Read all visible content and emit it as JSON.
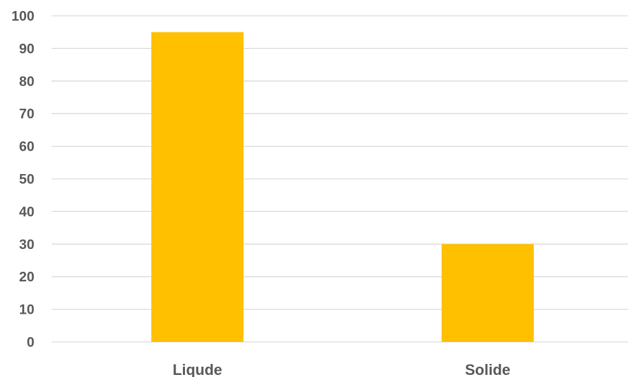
{
  "chart_data": {
    "type": "bar",
    "categories": [
      "Liqude",
      "Solide"
    ],
    "values": [
      95,
      30
    ],
    "yticks": [
      0,
      10,
      20,
      30,
      40,
      50,
      60,
      70,
      80,
      90,
      100
    ],
    "ylim": [
      0,
      100
    ],
    "grid": true,
    "legend": "none",
    "title": "",
    "xlabel": "",
    "ylabel": "",
    "colors": {
      "bar": "#FFC000",
      "grid": "#D9D9D9",
      "text": "#595959"
    }
  }
}
